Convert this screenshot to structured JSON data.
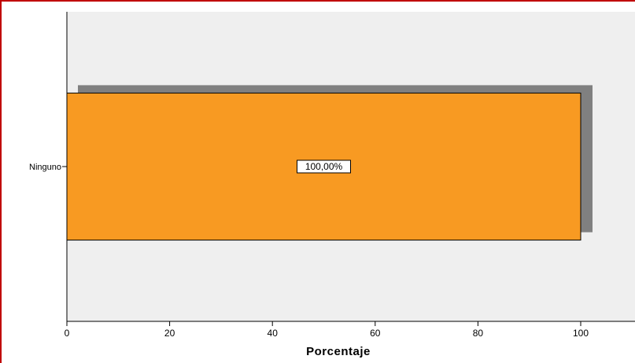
{
  "chart_data": {
    "type": "bar",
    "orientation": "horizontal",
    "categories": [
      "Ninguno"
    ],
    "values": [
      100
    ],
    "data_labels": [
      "100,00%"
    ],
    "xlabel": "Porcentaje",
    "ylabel": "",
    "xlim": [
      0,
      110
    ],
    "x_ticks": [
      0,
      20,
      40,
      60,
      80,
      100
    ],
    "grid": false,
    "legend": "none",
    "colors": {
      "bar": "#f89a22",
      "shadow": "#808080",
      "plot_background": "#efefef",
      "frame_border": "#c00000"
    }
  }
}
